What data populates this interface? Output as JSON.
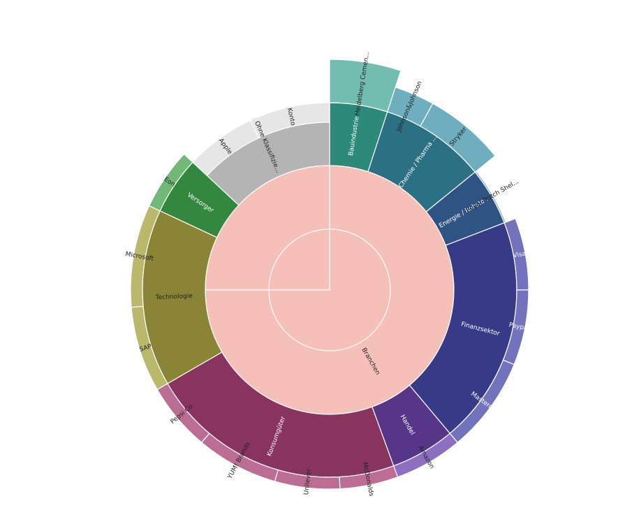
{
  "chart_data": {
    "type": "sunburst",
    "nodes": [
      {
        "level": 1,
        "label": "Branchen",
        "start": 0,
        "end": 360,
        "color": "#f5c0b8",
        "text_color": "#222222"
      },
      {
        "level": 1,
        "label": "",
        "start": 270,
        "end": 360,
        "color": "#f5c0b8",
        "text_color": "#222222"
      },
      {
        "level": 2,
        "label": "Bauindustrie",
        "start": 0,
        "end": 18,
        "color": "#2e8a78",
        "text_color": "#ffffff"
      },
      {
        "level": 2,
        "label": "Chemie / Pharma ...",
        "start": 18,
        "end": 51,
        "color": "#2c7183",
        "text_color": "#ffffff"
      },
      {
        "level": 2,
        "label": "Energie / Rohsto...",
        "start": 51,
        "end": 69,
        "color": "#2f5382",
        "text_color": "#ffffff"
      },
      {
        "level": 2,
        "label": "Finanzsektor",
        "start": 69,
        "end": 140,
        "color": "#363a87",
        "text_color": "#ffffff"
      },
      {
        "level": 2,
        "label": "Handel",
        "start": 140,
        "end": 160,
        "color": "#553689",
        "text_color": "#ffffff"
      },
      {
        "level": 2,
        "label": "Konsumgüter",
        "start": 160,
        "end": 240,
        "color": "#88345e",
        "text_color": "#ffffff"
      },
      {
        "level": 2,
        "label": "Technologie",
        "start": 240,
        "end": 295,
        "color": "#8a8536",
        "text_color": "#222222"
      },
      {
        "level": 2,
        "label": "Versorger",
        "start": 295,
        "end": 313,
        "color": "#33873e",
        "text_color": "#ffffff"
      },
      {
        "level": 2,
        "label": "Ohne Klassifizie...",
        "start": 313,
        "end": 360,
        "color": "#b4b4b4",
        "text_color": "#222222"
      },
      {
        "level": 3,
        "label": "Heidelberg Cemen...",
        "start": 0,
        "end": 18,
        "color": "#72bdb0",
        "text_color": "#222222",
        "outer": 330
      },
      {
        "level": 3,
        "label": "Johnson&Johnson",
        "start": 18,
        "end": 29,
        "color": "#6eaebf",
        "text_color": "#222222",
        "outer": 305
      },
      {
        "level": 3,
        "label": "Stryker",
        "start": 29,
        "end": 51,
        "color": "#6eaebf",
        "text_color": "#222222",
        "outer": 305
      },
      {
        "level": 3,
        "label": "Royal Dutch Shel...",
        "start": 51,
        "end": 69,
        "color": "#6b8fbd",
        "text_color": "#222222",
        "outer": 270
      },
      {
        "level": 3,
        "label": "Visa",
        "start": 69,
        "end": 90,
        "color": "#7272bd",
        "text_color": "#ffffff",
        "outer": 285
      },
      {
        "level": 3,
        "label": "Paypal",
        "start": 90,
        "end": 112,
        "color": "#7272bd",
        "text_color": "#ffffff",
        "outer": 285
      },
      {
        "level": 3,
        "label": "Mastercard",
        "start": 112,
        "end": 140,
        "color": "#7272bd",
        "text_color": "#ffffff",
        "outer": 285
      },
      {
        "level": 3,
        "label": "Amazon",
        "start": 140,
        "end": 160,
        "color": "#8c70bf",
        "text_color": "#222222",
        "outer": 285
      },
      {
        "level": 3,
        "label": "McDonalds",
        "start": 160,
        "end": 177,
        "color": "#bb6d94",
        "text_color": "#222222",
        "outer": 285
      },
      {
        "level": 3,
        "label": "Unilever",
        "start": 177,
        "end": 196,
        "color": "#bb6d94",
        "text_color": "#222222",
        "outer": 285
      },
      {
        "level": 3,
        "label": "YUM! Brands",
        "start": 196,
        "end": 220,
        "color": "#bb6d94",
        "text_color": "#222222",
        "outer": 285
      },
      {
        "level": 3,
        "label": "Pepsi Co",
        "start": 220,
        "end": 240,
        "color": "#bb6d94",
        "text_color": "#222222",
        "outer": 285
      },
      {
        "level": 3,
        "label": "SAP",
        "start": 240,
        "end": 265,
        "color": "#b9b86b",
        "text_color": "#222222",
        "outer": 285
      },
      {
        "level": 3,
        "label": "Microsoft",
        "start": 265,
        "end": 295,
        "color": "#b9b86b",
        "text_color": "#222222",
        "outer": 285
      },
      {
        "level": 3,
        "label": "Eon",
        "start": 295,
        "end": 313,
        "color": "#70b977",
        "text_color": "#222222",
        "outer": 285
      },
      {
        "level": 3,
        "label": "Apple",
        "start": 313,
        "end": 335,
        "color": "#e6e6e6",
        "text_color": "#222222",
        "outer": 240
      },
      {
        "level": 3,
        "label": "Konto",
        "start": 335,
        "end": 360,
        "color": "#e6e6e6",
        "text_color": "#222222",
        "outer": 240
      }
    ]
  }
}
